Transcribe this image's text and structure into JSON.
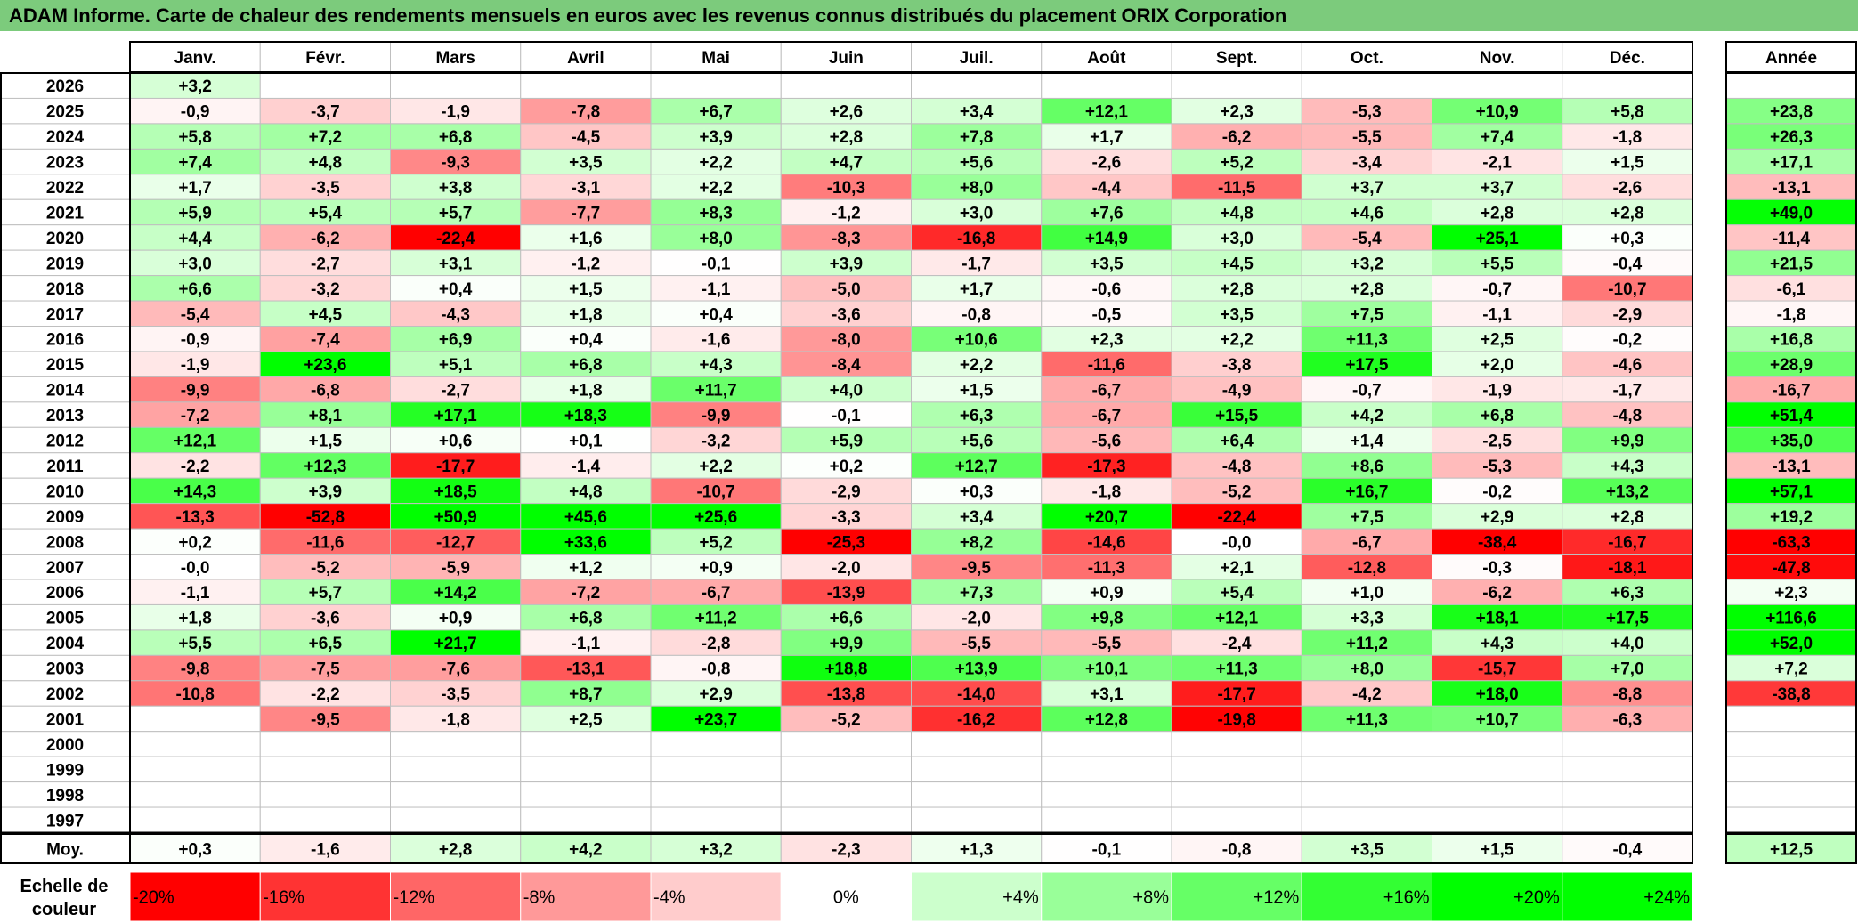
{
  "title": "ADAM Informe. Carte de chaleur des rendements mensuels en euros avec les revenus connus distribués du placement ORIX Corporation",
  "colors": {
    "title_bg": "#7ccb7c",
    "negative": "#ff0000",
    "positive": "#00ff00",
    "neutral": "#ffffff",
    "grid": "#bfbfbf",
    "border": "#000000"
  },
  "chart_data": {
    "type": "heatmap",
    "title": "ADAM Informe. Carte de chaleur des rendements mensuels en euros avec les revenus connus distribués du placement ORIX Corporation",
    "months": [
      "Janv.",
      "Févr.",
      "Mars",
      "Avril",
      "Mai",
      "Juin",
      "Juil.",
      "Août",
      "Sept.",
      "Oct.",
      "Nov.",
      "Déc."
    ],
    "year_header": "Année",
    "rows": [
      {
        "year": "2026",
        "values": [
          "+3,2",
          "",
          "",
          "",
          "",
          "",
          "",
          "",
          "",
          "",
          "",
          ""
        ],
        "annual": ""
      },
      {
        "year": "2025",
        "values": [
          "-0,9",
          "-3,7",
          "-1,9",
          "-7,8",
          "+6,7",
          "+2,6",
          "+3,4",
          "+12,1",
          "+2,3",
          "-5,3",
          "+10,9",
          "+5,8"
        ],
        "annual": "+23,8"
      },
      {
        "year": "2024",
        "values": [
          "+5,8",
          "+7,2",
          "+6,8",
          "-4,5",
          "+3,9",
          "+2,8",
          "+7,8",
          "+1,7",
          "-6,2",
          "-5,5",
          "+7,4",
          "-1,8"
        ],
        "annual": "+26,3"
      },
      {
        "year": "2023",
        "values": [
          "+7,4",
          "+4,8",
          "-9,3",
          "+3,5",
          "+2,2",
          "+4,7",
          "+5,6",
          "-2,6",
          "+5,2",
          "-3,4",
          "-2,1",
          "+1,5"
        ],
        "annual": "+17,1"
      },
      {
        "year": "2022",
        "values": [
          "+1,7",
          "-3,5",
          "+3,8",
          "-3,1",
          "+2,2",
          "-10,3",
          "+8,0",
          "-4,4",
          "-11,5",
          "+3,7",
          "+3,7",
          "-2,6"
        ],
        "annual": "-13,1"
      },
      {
        "year": "2021",
        "values": [
          "+5,9",
          "+5,4",
          "+5,7",
          "-7,7",
          "+8,3",
          "-1,2",
          "+3,0",
          "+7,6",
          "+4,8",
          "+4,6",
          "+2,8",
          "+2,8"
        ],
        "annual": "+49,0"
      },
      {
        "year": "2020",
        "values": [
          "+4,4",
          "-6,2",
          "-22,4",
          "+1,6",
          "+8,0",
          "-8,3",
          "-16,8",
          "+14,9",
          "+3,0",
          "-5,4",
          "+25,1",
          "+0,3"
        ],
        "annual": "-11,4"
      },
      {
        "year": "2019",
        "values": [
          "+3,0",
          "-2,7",
          "+3,1",
          "-1,2",
          "-0,1",
          "+3,9",
          "-1,7",
          "+3,5",
          "+4,5",
          "+3,2",
          "+5,5",
          "-0,4"
        ],
        "annual": "+21,5"
      },
      {
        "year": "2018",
        "values": [
          "+6,6",
          "-3,2",
          "+0,4",
          "+1,5",
          "-1,1",
          "-5,0",
          "+1,7",
          "-0,6",
          "+2,8",
          "+2,8",
          "-0,7",
          "-10,7"
        ],
        "annual": "-6,1"
      },
      {
        "year": "2017",
        "values": [
          "-5,4",
          "+4,5",
          "-4,3",
          "+1,8",
          "+0,4",
          "-3,6",
          "-0,8",
          "-0,5",
          "+3,5",
          "+7,5",
          "-1,1",
          "-2,9"
        ],
        "annual": "-1,8"
      },
      {
        "year": "2016",
        "values": [
          "-0,9",
          "-7,4",
          "+6,9",
          "+0,4",
          "-1,6",
          "-8,0",
          "+10,6",
          "+2,3",
          "+2,2",
          "+11,3",
          "+2,5",
          "-0,2"
        ],
        "annual": "+16,8"
      },
      {
        "year": "2015",
        "values": [
          "-1,9",
          "+23,6",
          "+5,1",
          "+6,8",
          "+4,3",
          "-8,4",
          "+2,2",
          "-11,6",
          "-3,8",
          "+17,5",
          "+2,0",
          "-4,6"
        ],
        "annual": "+28,9"
      },
      {
        "year": "2014",
        "values": [
          "-9,9",
          "-6,8",
          "-2,7",
          "+1,8",
          "+11,7",
          "+4,0",
          "+1,5",
          "-6,7",
          "-4,9",
          "-0,7",
          "-1,9",
          "-1,7"
        ],
        "annual": "-16,7"
      },
      {
        "year": "2013",
        "values": [
          "-7,2",
          "+8,1",
          "+17,1",
          "+18,3",
          "-9,9",
          "-0,1",
          "+6,3",
          "-6,7",
          "+15,5",
          "+4,2",
          "+6,8",
          "-4,8"
        ],
        "annual": "+51,4"
      },
      {
        "year": "2012",
        "values": [
          "+12,1",
          "+1,5",
          "+0,6",
          "+0,1",
          "-3,2",
          "+5,9",
          "+5,6",
          "-5,6",
          "+6,4",
          "+1,4",
          "-2,5",
          "+9,9"
        ],
        "annual": "+35,0"
      },
      {
        "year": "2011",
        "values": [
          "-2,2",
          "+12,3",
          "-17,7",
          "-1,4",
          "+2,2",
          "+0,2",
          "+12,7",
          "-17,3",
          "-4,8",
          "+8,6",
          "-5,3",
          "+4,3"
        ],
        "annual": "-13,1"
      },
      {
        "year": "2010",
        "values": [
          "+14,3",
          "+3,9",
          "+18,5",
          "+4,8",
          "-10,7",
          "-2,9",
          "+0,3",
          "-1,8",
          "-5,2",
          "+16,7",
          "-0,2",
          "+13,2"
        ],
        "annual": "+57,1"
      },
      {
        "year": "2009",
        "values": [
          "-13,3",
          "-52,8",
          "+50,9",
          "+45,6",
          "+25,6",
          "-3,3",
          "+3,4",
          "+20,7",
          "-22,4",
          "+7,5",
          "+2,9",
          "+2,8"
        ],
        "annual": "+19,2"
      },
      {
        "year": "2008",
        "values": [
          "+0,2",
          "-11,6",
          "-12,7",
          "+33,6",
          "+5,2",
          "-25,3",
          "+8,2",
          "-14,6",
          "-0,0",
          "-6,7",
          "-38,4",
          "-16,7"
        ],
        "annual": "-63,3"
      },
      {
        "year": "2007",
        "values": [
          "-0,0",
          "-5,2",
          "-5,9",
          "+1,2",
          "+0,9",
          "-2,0",
          "-9,5",
          "-11,3",
          "+2,1",
          "-12,8",
          "-0,3",
          "-18,1"
        ],
        "annual": "-47,8"
      },
      {
        "year": "2006",
        "values": [
          "-1,1",
          "+5,7",
          "+14,2",
          "-7,2",
          "-6,7",
          "-13,9",
          "+7,3",
          "+0,9",
          "+5,4",
          "+1,0",
          "-6,2",
          "+6,3"
        ],
        "annual": "+2,3"
      },
      {
        "year": "2005",
        "values": [
          "+1,8",
          "-3,6",
          "+0,9",
          "+6,8",
          "+11,2",
          "+6,6",
          "-2,0",
          "+9,8",
          "+12,1",
          "+3,3",
          "+18,1",
          "+17,5"
        ],
        "annual": "+116,6"
      },
      {
        "year": "2004",
        "values": [
          "+5,5",
          "+6,5",
          "+21,7",
          "-1,1",
          "-2,8",
          "+9,9",
          "-5,5",
          "-5,5",
          "-2,4",
          "+11,2",
          "+4,3",
          "+4,0"
        ],
        "annual": "+52,0"
      },
      {
        "year": "2003",
        "values": [
          "-9,8",
          "-7,5",
          "-7,6",
          "-13,1",
          "-0,8",
          "+18,8",
          "+13,9",
          "+10,1",
          "+11,3",
          "+8,0",
          "-15,7",
          "+7,0"
        ],
        "annual": "+7,2"
      },
      {
        "year": "2002",
        "values": [
          "-10,8",
          "-2,2",
          "-3,5",
          "+8,7",
          "+2,9",
          "-13,8",
          "-14,0",
          "+3,1",
          "-17,7",
          "-4,2",
          "+18,0",
          "-8,8"
        ],
        "annual": "-38,8"
      },
      {
        "year": "2001",
        "values": [
          "",
          "-9,5",
          "-1,8",
          "+2,5",
          "+23,7",
          "-5,2",
          "-16,2",
          "+12,8",
          "-19,8",
          "+11,3",
          "+10,7",
          "-6,3"
        ],
        "annual": ""
      },
      {
        "year": "2000",
        "values": [
          "",
          "",
          "",
          "",
          "",
          "",
          "",
          "",
          "",
          "",
          "",
          ""
        ],
        "annual": ""
      },
      {
        "year": "1999",
        "values": [
          "",
          "",
          "",
          "",
          "",
          "",
          "",
          "",
          "",
          "",
          "",
          ""
        ],
        "annual": ""
      },
      {
        "year": "1998",
        "values": [
          "",
          "",
          "",
          "",
          "",
          "",
          "",
          "",
          "",
          "",
          "",
          ""
        ],
        "annual": ""
      },
      {
        "year": "1997",
        "values": [
          "",
          "",
          "",
          "",
          "",
          "",
          "",
          "",
          "",
          "",
          "",
          ""
        ],
        "annual": ""
      }
    ],
    "average": {
      "label": "Moy.",
      "values": [
        "+0,3",
        "-1,6",
        "+2,8",
        "+4,2",
        "+3,2",
        "-2,3",
        "+1,3",
        "-0,1",
        "-0,8",
        "+3,5",
        "+1,5",
        "-0,4"
      ],
      "annual": "+12,5"
    },
    "scale": {
      "label_line1": "Echelle de",
      "label_line2": "couleur",
      "items": [
        {
          "label": "-20%",
          "value": -20
        },
        {
          "label": "-16%",
          "value": -16
        },
        {
          "label": "-12%",
          "value": -12
        },
        {
          "label": "-8%",
          "value": -8
        },
        {
          "label": "-4%",
          "value": -4
        },
        {
          "label": "0%",
          "value": 0
        },
        {
          "label": "+4%",
          "value": 4
        },
        {
          "label": "+8%",
          "value": 8
        },
        {
          "label": "+12%",
          "value": 12
        },
        {
          "label": "+16%",
          "value": 16
        },
        {
          "label": "+20%",
          "value": 20
        },
        {
          "label": "+24%",
          "value": 24
        }
      ]
    }
  }
}
